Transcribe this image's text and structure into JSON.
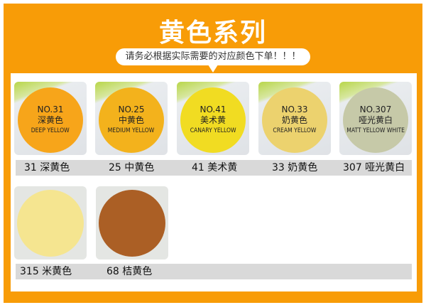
{
  "header": {
    "title": "黄色系列",
    "notice": "请务必根据实际需要的对应颜色下单！！！"
  },
  "colors": {
    "frame": "#f89c07"
  },
  "swatches": [
    {
      "no": "NO.31",
      "cn": "深黄色",
      "en": "DEEP YELLOW",
      "label": "31 深黄色",
      "color": "#f7a51a"
    },
    {
      "no": "NO.25",
      "cn": "中黄色",
      "en": "MEDIUM YELLOW",
      "label": "25 中黄色",
      "color": "#f3b21c"
    },
    {
      "no": "NO.41",
      "cn": "美术黄",
      "en": "CANARY YELLOW",
      "label": "41 美术黄",
      "color": "#f1dc22"
    },
    {
      "no": "NO.33",
      "cn": "奶黄色",
      "en": "CREAM YELLOW",
      "label": "33 奶黄色",
      "color": "#ecd26e"
    },
    {
      "no": "NO.307",
      "cn": "哑光黄白",
      "en": "MATT YELLOW WHITE",
      "label": "307 哑光黄白",
      "color": "#c6c9a8"
    },
    {
      "label": "315 米黄色",
      "color": "#f5e590"
    },
    {
      "label": "68 桔黄色",
      "color": "#ab5f25"
    }
  ]
}
